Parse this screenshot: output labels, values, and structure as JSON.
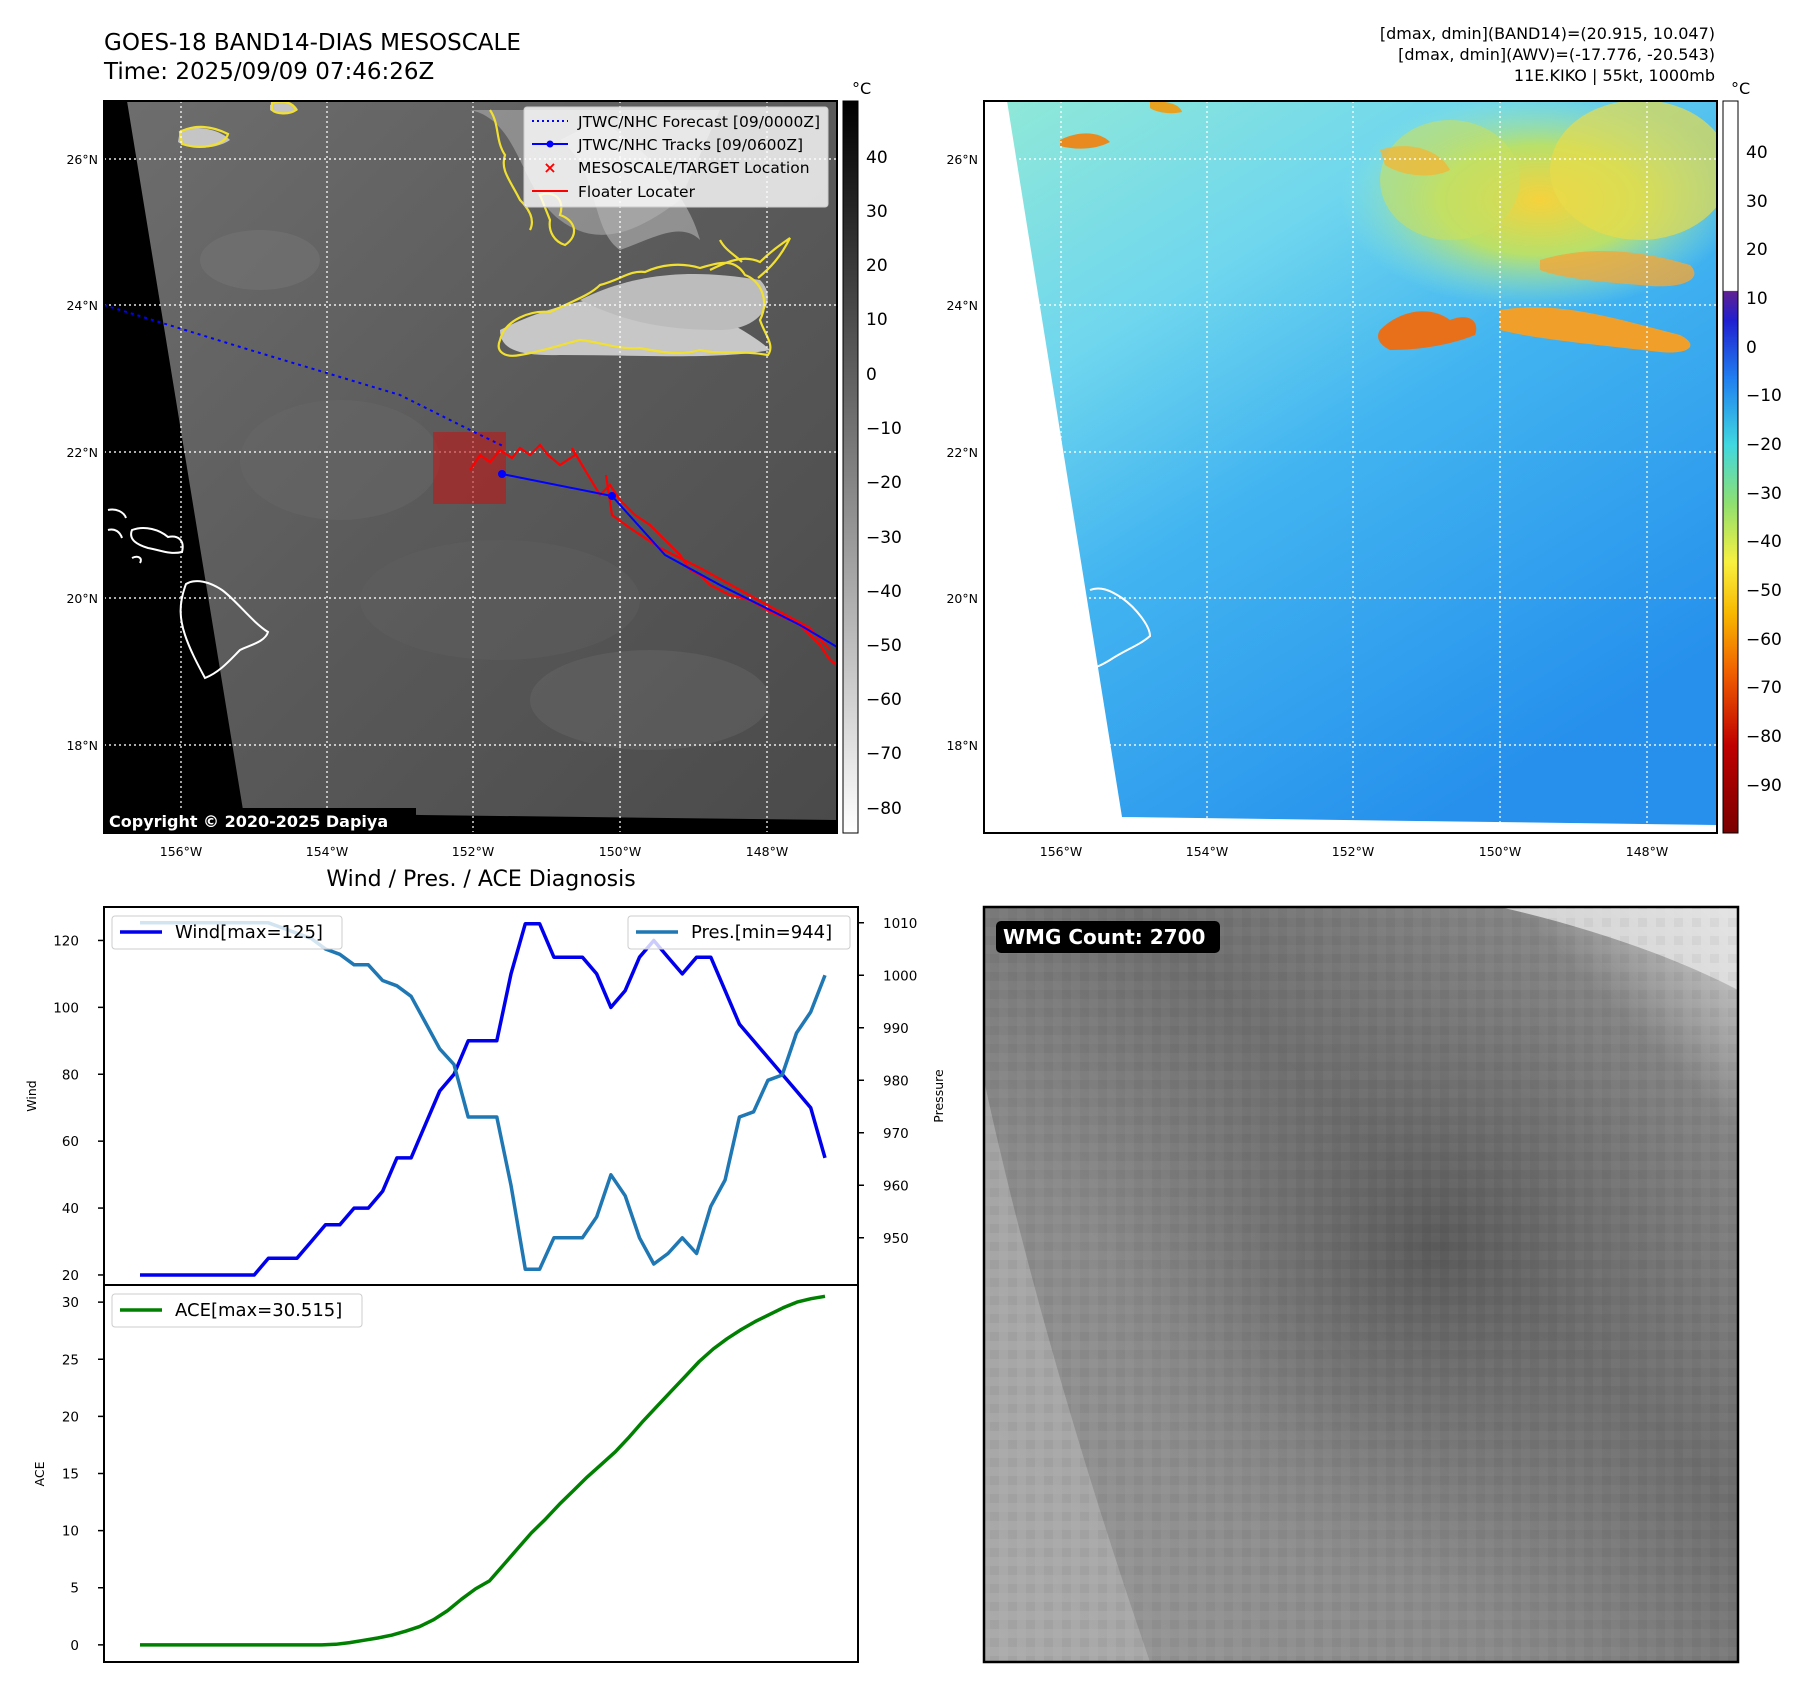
{
  "header": {
    "title_line1": "GOES-18 BAND14-DIAS MESOSCALE",
    "title_line2": "Time: 2025/09/09 07:46:26Z",
    "info_line1": "[dmax, dmin](BAND14)=(20.915, 10.047)",
    "info_line2": "[dmax, dmin](AWV)=(-17.776, -20.543)",
    "info_line3": "11E.KIKO | 55kt, 1000mb"
  },
  "map": {
    "lat_labels": [
      "26°N",
      "24°N",
      "22°N",
      "20°N",
      "18°N"
    ],
    "lon_labels": [
      "156°W",
      "154°W",
      "152°W",
      "150°W",
      "148°W"
    ],
    "legend": [
      {
        "label": "JTWC/NHC Forecast [09/0000Z]",
        "color": "#0000ff",
        "style": "dotted"
      },
      {
        "label": "JTWC/NHC Tracks [09/0600Z]",
        "color": "#0000ff",
        "style": "line-dot"
      },
      {
        "label": "MESOSCALE/TARGET Location",
        "color": "#ff0000",
        "style": "x"
      },
      {
        "label": "Floater Locater",
        "color": "#ff0000",
        "style": "line"
      }
    ],
    "copyright": "Copyright © 2020-2025 Dapiya",
    "colorbar_unit": "°C",
    "colorbar_ticks": [
      "40",
      "30",
      "20",
      "10",
      "0",
      "−10",
      "−20",
      "−30",
      "−40",
      "−50",
      "−60",
      "−70",
      "−80"
    ],
    "colorbar2_unit": "°C",
    "colorbar2_ticks": [
      "40",
      "30",
      "20",
      "10",
      "0",
      "−10",
      "−20",
      "−30",
      "−40",
      "−50",
      "−60",
      "−70",
      "−80",
      "−90"
    ]
  },
  "wmg": {
    "label": "WMG Count: 2700"
  },
  "chart_data": [
    {
      "type": "line",
      "title": "Wind / Pres. / ACE Diagnosis",
      "ylabel": "Wind",
      "y2label": "Pressure",
      "ylim": [
        17,
        130
      ],
      "y2lim": [
        941,
        1013
      ],
      "yticks": [
        "20",
        "40",
        "60",
        "80",
        "100",
        "120"
      ],
      "y2ticks": [
        "950",
        "960",
        "970",
        "980",
        "990",
        "1000",
        "1010"
      ],
      "series": [
        {
          "name": "Wind[max=125]",
          "color": "#0000ee",
          "values": [
            20,
            20,
            20,
            20,
            20,
            20,
            20,
            20,
            20,
            25,
            25,
            25,
            30,
            35,
            35,
            40,
            40,
            45,
            55,
            55,
            65,
            75,
            80,
            90,
            90,
            90,
            110,
            125,
            125,
            115,
            115,
            115,
            110,
            100,
            105,
            115,
            120,
            115,
            110,
            115,
            115,
            105,
            95,
            90,
            85,
            80,
            75,
            70,
            55
          ]
        },
        {
          "name": "Pres.[min=944]",
          "color": "#1f77b4",
          "values": [
            1010,
            1010,
            1010,
            1010,
            1010,
            1010,
            1010,
            1010,
            1010,
            1010,
            1009,
            1008,
            1007,
            1005,
            1004,
            1002,
            1002,
            999,
            998,
            996,
            991,
            986,
            983,
            973,
            973,
            973,
            960,
            944,
            944,
            950,
            950,
            950,
            954,
            962,
            958,
            950,
            945,
            947,
            950,
            947,
            956,
            961,
            973,
            974,
            980,
            981,
            989,
            993,
            1000
          ]
        }
      ]
    },
    {
      "type": "line",
      "ylabel": "ACE",
      "ylim": [
        -1.5,
        31.5
      ],
      "yticks": [
        "0",
        "5",
        "10",
        "15",
        "20",
        "25",
        "30"
      ],
      "series": [
        {
          "name": "ACE[max=30.515]",
          "color": "#008000",
          "values": [
            0,
            0,
            0,
            0,
            0,
            0,
            0,
            0,
            0,
            0,
            0,
            0,
            0,
            0,
            0.05,
            0.2,
            0.4,
            0.6,
            0.85,
            1.2,
            1.6,
            2.2,
            3.0,
            4.0,
            4.9,
            5.6,
            7.0,
            8.4,
            9.8,
            11.0,
            12.3,
            13.5,
            14.7,
            15.8,
            16.9,
            18.2,
            19.6,
            20.9,
            22.2,
            23.5,
            24.8,
            25.9,
            26.8,
            27.6,
            28.3,
            28.9,
            29.5,
            30.0,
            30.3,
            30.515
          ]
        }
      ]
    }
  ]
}
